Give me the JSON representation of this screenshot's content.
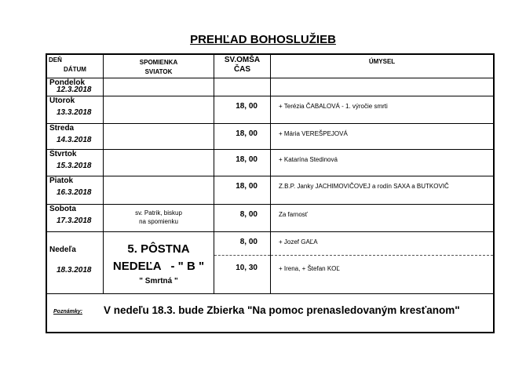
{
  "title": "PREHĽAD BOHOSLUŽIEB",
  "headers": {
    "day": "DEŇ",
    "date": "DÁTUM",
    "feast1": "SPOMIENKA",
    "feast2": "SVIATOK",
    "mass1": "SV.OMŠA",
    "mass2": "ČAS",
    "intention": "ÚMYSEL"
  },
  "rows": [
    {
      "day": "Pondelok",
      "date": "12.3.2018",
      "feast": "",
      "time": "",
      "intention": ""
    },
    {
      "day": "Utorok",
      "date": "13.3.2018",
      "feast": "",
      "time": "18, 00",
      "intention": "+  Terézia ČABALOVÁ  -  1. výročie smrti"
    },
    {
      "day": "Streda",
      "date": "14.3.2018",
      "feast": "",
      "time": "18, 00",
      "intention": "+  Mária VEREŠPEJOVÁ"
    },
    {
      "day": "Štvrtok",
      "date": "15.3.2018",
      "feast": "",
      "time": "18, 00",
      "intention": "+  Katarína Stedinová"
    },
    {
      "day": "Piatok",
      "date": "16.3.2018",
      "feast": "",
      "time": "18, 00",
      "intention": "Z.B.P. Janky JACHIMOVIČOVEJ a rodín SAXA a BUTKOVIČ"
    },
    {
      "day": "Sobota",
      "date": "17.3.2018",
      "feast": "sv. Patrik, biskup",
      "feast2": "na spomienku",
      "time": "8, 00",
      "intention": "Za farnosť"
    }
  ],
  "sunday": {
    "day": "Nedeľa",
    "date": "18.3.2018",
    "feast1": "5. PÔSTNA",
    "feast2": "NEDEĽA   - \" B \"",
    "feast3": "\" Smrtná \"",
    "masses": [
      {
        "time": "8, 00",
        "intention": "+  Jozef GAĽA"
      },
      {
        "time": "10, 30",
        "intention": "+  Irena,  +  Štefan KOĽ"
      }
    ]
  },
  "notes": {
    "label": "Poznámky:",
    "text": "V nedeľu 18.3. bude Zbierka \"Na pomoc prenasledovaným kresťanom\""
  }
}
